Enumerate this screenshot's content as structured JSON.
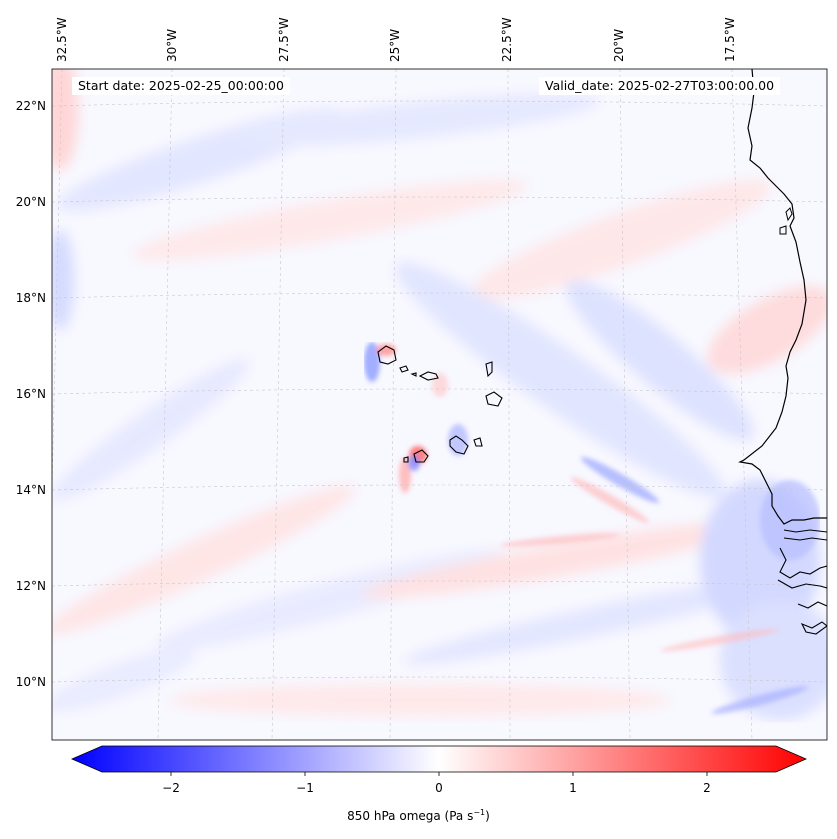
{
  "map": {
    "start_date_text": "Start date: 2025-02-25_00:00:00",
    "valid_date_text": "Valid_date: 2025-02-27T03:00:00.00",
    "lon_labels": [
      "32.5°W",
      "30°W",
      "27.5°W",
      "25°W",
      "22.5°W",
      "20°W",
      "17.5°W"
    ],
    "lat_labels": [
      "22°N",
      "20°N",
      "18°N",
      "16°N",
      "14°N",
      "12°N",
      "10°N"
    ],
    "colorbar": {
      "label_main": "850 hPa omega (Pa s",
      "label_sup": "−1",
      "label_end": ")",
      "ticks": [
        "−2",
        "−1",
        "0",
        "1",
        "2"
      ],
      "range": [
        -2.6,
        2.6
      ],
      "cmap": [
        "#0000ff",
        "#ffffff",
        "#ff0000"
      ]
    },
    "colors": {
      "coastline": "#000000",
      "grid": "#c8c8c8"
    }
  }
}
